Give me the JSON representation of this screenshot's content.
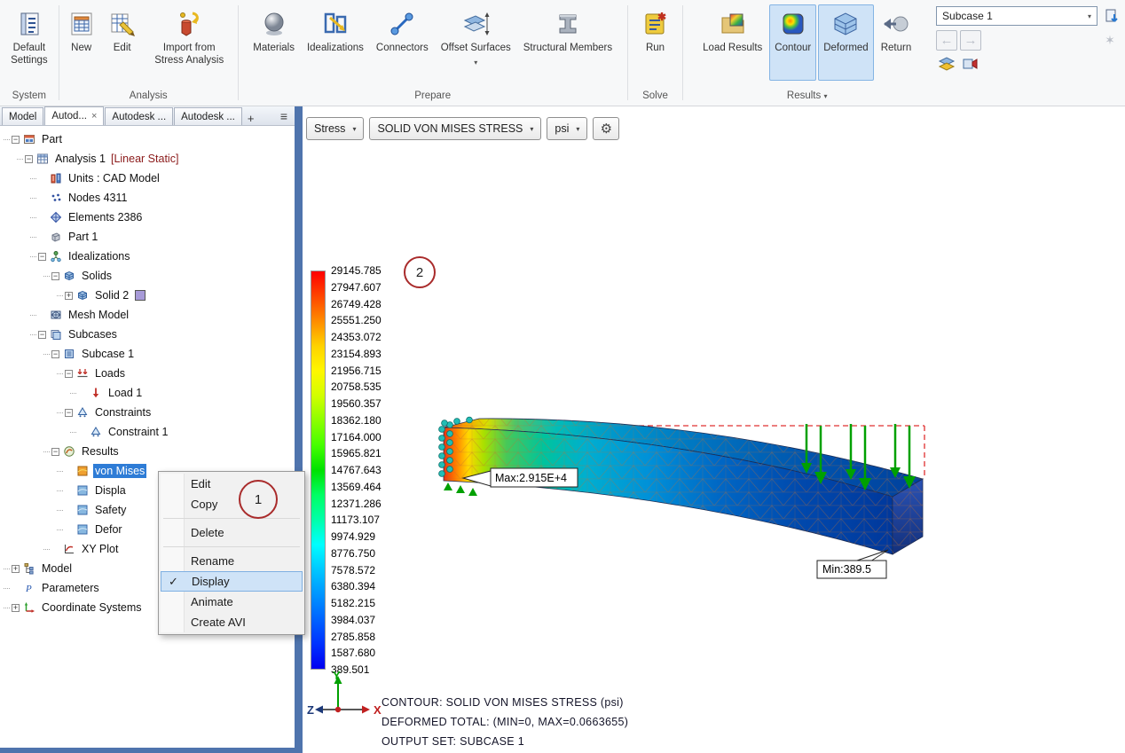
{
  "ribbon": {
    "system": {
      "label": "System",
      "default_settings": "Default Settings"
    },
    "analysis": {
      "label": "Analysis",
      "new": "New",
      "edit": "Edit",
      "import_from_stress": "Import from Stress Analysis"
    },
    "prepare": {
      "label": "Prepare",
      "materials": "Materials",
      "idealizations": "Idealizations",
      "connectors": "Connectors",
      "offset_surfaces": "Offset Surfaces",
      "structural_members": "Structural Members"
    },
    "solve": {
      "label": "Solve",
      "run": "Run"
    },
    "results": {
      "label": "Results",
      "load_results": "Load Results",
      "contour": "Contour",
      "deformed": "Deformed",
      "return": "Return"
    },
    "subcase_value": "Subcase 1"
  },
  "tabs": {
    "items": [
      {
        "label": "Model",
        "active": false,
        "closable": false
      },
      {
        "label": "Autod...",
        "active": true,
        "closable": true
      },
      {
        "label": "Autodesk ...",
        "active": false,
        "closable": false
      },
      {
        "label": "Autodesk ...",
        "active": false,
        "closable": false
      }
    ],
    "add_label": "+"
  },
  "tree": {
    "items": [
      {
        "label": "Part",
        "level": 0,
        "expand": "minus",
        "icon": "part"
      },
      {
        "label": "Analysis 1",
        "suffix": "[Linear Static]",
        "level": 1,
        "expand": "minus",
        "icon": "analysis"
      },
      {
        "label": "Units : CAD Model",
        "level": 2,
        "icon": "units"
      },
      {
        "label": "Nodes 4311",
        "level": 2,
        "icon": "nodes"
      },
      {
        "label": "Elements 2386",
        "level": 2,
        "icon": "elements"
      },
      {
        "label": "Part 1",
        "level": 2,
        "icon": "part1"
      },
      {
        "label": "Idealizations",
        "level": 2,
        "expand": "minus",
        "icon": "ideal"
      },
      {
        "label": "Solids",
        "level": 3,
        "expand": "minus",
        "icon": "solids"
      },
      {
        "label": "Solid 2",
        "level": 4,
        "expand": "plus",
        "icon": "solids",
        "swatch": "#a79ad8"
      },
      {
        "label": "Mesh Model",
        "level": 2,
        "icon": "mesh"
      },
      {
        "label": "Subcases",
        "level": 2,
        "expand": "minus",
        "icon": "subcases"
      },
      {
        "label": "Subcase 1",
        "level": 3,
        "expand": "minus",
        "icon": "subcase"
      },
      {
        "label": "Loads",
        "level": 4,
        "expand": "minus",
        "icon": "loads"
      },
      {
        "label": "Load 1",
        "level": 5,
        "icon": "load"
      },
      {
        "label": "Constraints",
        "level": 4,
        "expand": "minus",
        "icon": "constraints"
      },
      {
        "label": "Constraint 1",
        "level": 5,
        "icon": "constraint"
      },
      {
        "label": "Results",
        "level": 3,
        "expand": "minus",
        "icon": "results"
      },
      {
        "label": "von Mises",
        "level": 4,
        "icon": "vonmises",
        "selected": true
      },
      {
        "label": "Displa",
        "level": 4,
        "icon": "contouritem"
      },
      {
        "label": "Safety",
        "level": 4,
        "icon": "contouritem"
      },
      {
        "label": "Defor",
        "level": 4,
        "icon": "contouritem"
      },
      {
        "label": "XY Plot",
        "level": 3,
        "icon": "xyplot"
      },
      {
        "label": "Model",
        "level": 0,
        "expand": "plus",
        "icon": "modeltree"
      },
      {
        "label": "Parameters",
        "level": 0,
        "icon": "parameters"
      },
      {
        "label": "Coordinate Systems",
        "level": 0,
        "expand": "plus",
        "icon": "coordsys"
      }
    ]
  },
  "context_menu": {
    "items": [
      {
        "label": "Edit"
      },
      {
        "label": "Copy",
        "sep_after": true
      },
      {
        "label": "Delete",
        "sep_after": true
      },
      {
        "label": "Rename"
      },
      {
        "label": "Display",
        "checked": true,
        "highlighted": true
      },
      {
        "label": "Animate"
      },
      {
        "label": "Create AVI"
      }
    ]
  },
  "annotations": {
    "circle1": "1",
    "circle2": "2"
  },
  "viewport": {
    "toolbar": {
      "result_type": "Stress",
      "result_name": "SOLID VON MISES STRESS",
      "units": "psi"
    },
    "legend": {
      "values": [
        "29145.785",
        "27947.607",
        "26749.428",
        "25551.250",
        "24353.072",
        "23154.893",
        "21956.715",
        "20758.535",
        "19560.357",
        "18362.180",
        "17164.000",
        "15965.821",
        "14767.643",
        "13569.464",
        "12371.286",
        "11173.107",
        "9974.929",
        "8776.750",
        "7578.572",
        "6380.394",
        "5182.215",
        "3984.037",
        "2785.858",
        "1587.680",
        "389.501"
      ],
      "colors": [
        "#ff0000",
        "#ff4600",
        "#ff8c00",
        "#ffd200",
        "#fff700",
        "#d2ff00",
        "#8cff00",
        "#46ff00",
        "#00e100",
        "#00ff64",
        "#00ffaa",
        "#00ffff",
        "#00c8ff",
        "#0096ff",
        "#0064ff",
        "#0032ff",
        "#0000f0"
      ]
    },
    "max_label": "Max:2.915E+4",
    "min_label": "Min:389.5",
    "info_line1": "CONTOUR: SOLID VON MISES STRESS (psi)",
    "info_line2": "DEFORMED TOTAL: (MIN=0, MAX=0.0663655)",
    "info_line3": "OUTPUT SET: SUBCASE 1",
    "axes": {
      "x": "X",
      "y": "Y",
      "z": "Z"
    }
  }
}
